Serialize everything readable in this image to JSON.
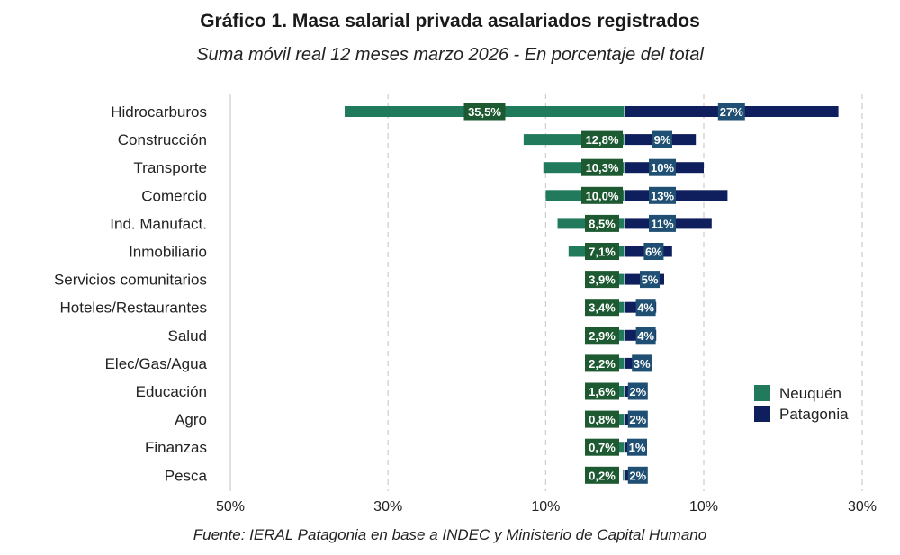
{
  "chart_data": {
    "type": "bar",
    "orientation": "horizontal-diverging",
    "title": "Gráfico 1. Masa salarial privada asalariados registrados",
    "subtitle": "Suma móvil real 12 meses marzo 2026 - En porcentaje del total",
    "source": "Fuente: IERAL Patagonia en base a INDEC y Ministerio de Capital Humano",
    "categories": [
      "Hidrocarburos",
      "Construcción",
      "Transporte",
      "Comercio",
      "Ind. Manufact.",
      "Inmobiliario",
      "Servicios comunitarios",
      "Hoteles/Restaurantes",
      "Salud",
      "Elec/Gas/Agua",
      "Educación",
      "Agro",
      "Finanzas",
      "Pesca"
    ],
    "series": [
      {
        "name": "Neuquén",
        "side": "left",
        "color": "#217a5b",
        "label_bg": "#1d5a31",
        "values": [
          35.5,
          12.8,
          10.3,
          10.0,
          8.5,
          7.1,
          3.9,
          3.4,
          2.9,
          2.2,
          1.6,
          0.8,
          0.7,
          0.2
        ],
        "labels": [
          "35,5%",
          "12,8%",
          "10,3%",
          "10,0%",
          "8,5%",
          "7,1%",
          "3,9%",
          "3,4%",
          "2,9%",
          "2,2%",
          "1,6%",
          "0,8%",
          "0,7%",
          "0,2%"
        ]
      },
      {
        "name": "Patagonia",
        "side": "right",
        "color": "#0f1f5e",
        "label_bg": "#1f4f72",
        "values": [
          27,
          9,
          10,
          13,
          11,
          6,
          5,
          4,
          4,
          3,
          2,
          2,
          1,
          2
        ],
        "labels": [
          "27%",
          "9%",
          "10%",
          "13%",
          "11%",
          "6%",
          "5%",
          "4%",
          "4%",
          "3%",
          "2%",
          "2%",
          "1%",
          "2%"
        ]
      }
    ],
    "xticks": [
      {
        "value": -50,
        "label": "50%"
      },
      {
        "value": -30,
        "label": "30%"
      },
      {
        "value": -10,
        "label": "10%"
      },
      {
        "value": 10,
        "label": "10%"
      },
      {
        "value": 30,
        "label": "30%"
      }
    ],
    "xlim": [
      -50,
      30
    ],
    "grid": true,
    "legend_position": "right"
  }
}
